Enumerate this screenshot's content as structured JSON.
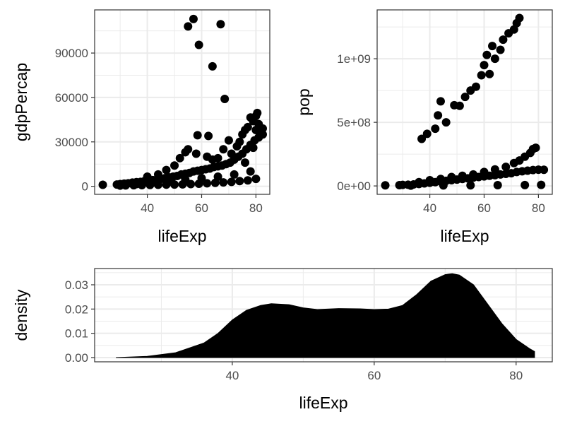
{
  "chart_data": [
    {
      "type": "scatter",
      "xlabel": "lifeExp",
      "ylabel": "gdpPercap",
      "xlim": [
        20.6,
        85.1
      ],
      "ylim": [
        -5430,
        119150
      ],
      "xticks": [
        40,
        60,
        80
      ],
      "xtick_labels": [
        "40",
        "60",
        "80"
      ],
      "yticks": [
        0,
        30000,
        60000,
        90000
      ],
      "ytick_labels": [
        "0",
        "30000",
        "60000",
        "90000"
      ],
      "grid": true,
      "series": [
        {
          "points": [
            [
              23.6,
              1000
            ],
            [
              28.8,
              1200
            ],
            [
              30,
              1500
            ],
            [
              31.5,
              1800
            ],
            [
              33,
              2000
            ],
            [
              34.5,
              2500
            ],
            [
              36,
              2800
            ],
            [
              37.5,
              3000
            ],
            [
              39,
              3500
            ],
            [
              40.5,
              4000
            ],
            [
              42,
              4200
            ],
            [
              43.5,
              4500
            ],
            [
              45,
              5000
            ],
            [
              46.5,
              5500
            ],
            [
              48,
              6000
            ],
            [
              49.5,
              6500
            ],
            [
              51,
              7000
            ],
            [
              52.5,
              8000
            ],
            [
              54,
              8500
            ],
            [
              55.5,
              9000
            ],
            [
              57,
              10000
            ],
            [
              58.5,
              10500
            ],
            [
              60,
              11000
            ],
            [
              61.5,
              11500
            ],
            [
              63,
              12000
            ],
            [
              64.5,
              13000
            ],
            [
              66,
              13500
            ],
            [
              67.5,
              14000
            ],
            [
              69,
              15000
            ],
            [
              70.5,
              16000
            ],
            [
              72,
              18000
            ],
            [
              73.5,
              20000
            ],
            [
              75,
              22000
            ],
            [
              76.5,
              25000
            ],
            [
              78,
              28000
            ],
            [
              79.5,
              31000
            ],
            [
              81,
              33000
            ],
            [
              82.5,
              35000
            ],
            [
              30,
              500
            ],
            [
              32,
              600
            ],
            [
              35,
              700
            ],
            [
              38,
              800
            ],
            [
              41,
              900
            ],
            [
              44,
              1000
            ],
            [
              47,
              1100
            ],
            [
              50,
              1200
            ],
            [
              53,
              1300
            ],
            [
              56,
              1500
            ],
            [
              59,
              1700
            ],
            [
              62,
              2000
            ],
            [
              65,
              2300
            ],
            [
              68,
              2600
            ],
            [
              71,
              3000
            ],
            [
              74,
              3500
            ],
            [
              77,
              4000
            ],
            [
              80,
              5000
            ],
            [
              36,
              1500
            ],
            [
              42,
              2500
            ],
            [
              48,
              3500
            ],
            [
              54,
              4500
            ],
            [
              60,
              5500
            ],
            [
              66,
              6500
            ],
            [
              72,
              8000
            ],
            [
              78,
              10000
            ],
            [
              40,
              6500
            ],
            [
              44,
              8000
            ],
            [
              47,
              11000
            ],
            [
              50,
              14000
            ],
            [
              52,
              19000
            ],
            [
              54,
              23000
            ],
            [
              55,
              25000
            ],
            [
              58,
              22000
            ],
            [
              62,
              20000
            ],
            [
              64,
              18000
            ],
            [
              66,
              19000
            ],
            [
              68,
              25000
            ],
            [
              70,
              31000
            ],
            [
              71,
              22000
            ],
            [
              73,
              27000
            ],
            [
              74,
              30000
            ],
            [
              75,
              35000
            ],
            [
              76,
              38000
            ],
            [
              77,
              40000
            ],
            [
              78,
              46500
            ],
            [
              79,
              44000
            ],
            [
              80,
              47500
            ],
            [
              80.5,
              49500
            ],
            [
              81,
              42000
            ],
            [
              82,
              36000
            ],
            [
              82.5,
              39000
            ],
            [
              80,
              38000
            ],
            [
              79,
              26000
            ],
            [
              76,
              16000
            ],
            [
              55,
              108000
            ],
            [
              57,
              113000
            ],
            [
              59,
              95500
            ],
            [
              64,
              81000
            ],
            [
              67,
              109500
            ],
            [
              68.5,
              59000
            ],
            [
              58.5,
              34500
            ],
            [
              62.5,
              34000
            ]
          ]
        }
      ]
    },
    {
      "type": "scatter",
      "xlabel": "lifeExp",
      "ylabel": "pop",
      "xlim": [
        20.6,
        85.1
      ],
      "ylim": [
        -66000000.0,
        1384000000.0
      ],
      "xticks": [
        40,
        60,
        80
      ],
      "xtick_labels": [
        "40",
        "60",
        "80"
      ],
      "yticks": [
        0,
        500000000,
        1000000000
      ],
      "ytick_labels": [
        "0e+00",
        "5e+08",
        "1e+09"
      ],
      "grid": true,
      "series": [
        {
          "points": [
            [
              23.6,
              5000000
            ],
            [
              28.8,
              6000000
            ],
            [
              30,
              8000000
            ],
            [
              32,
              10000000
            ],
            [
              34,
              12000000
            ],
            [
              36,
              15000000
            ],
            [
              38,
              20000000
            ],
            [
              40,
              25000000
            ],
            [
              42,
              30000000
            ],
            [
              44,
              35000000
            ],
            [
              46,
              40000000
            ],
            [
              48,
              45000000
            ],
            [
              50,
              50000000
            ],
            [
              52,
              55000000
            ],
            [
              54,
              60000000
            ],
            [
              56,
              65000000
            ],
            [
              58,
              70000000
            ],
            [
              60,
              75000000
            ],
            [
              62,
              80000000
            ],
            [
              64,
              85000000
            ],
            [
              66,
              90000000
            ],
            [
              68,
              95000000
            ],
            [
              70,
              100000000
            ],
            [
              72,
              110000000
            ],
            [
              74,
              115000000
            ],
            [
              76,
              120000000
            ],
            [
              78,
              125000000
            ],
            [
              80,
              128000000
            ],
            [
              82,
              127000000
            ],
            [
              36,
              30000000
            ],
            [
              40,
              45000000
            ],
            [
              44,
              55000000
            ],
            [
              48,
              70000000
            ],
            [
              52,
              80000000
            ],
            [
              56,
              90000000
            ],
            [
              60,
              110000000
            ],
            [
              64,
              130000000
            ],
            [
              68,
              150000000
            ],
            [
              71,
              180000000
            ],
            [
              73,
              200000000
            ],
            [
              75,
              230000000
            ],
            [
              77,
              260000000
            ],
            [
              78,
              290000000
            ],
            [
              79,
              300000000
            ],
            [
              33,
              3000000
            ],
            [
              45,
              4000000
            ],
            [
              55,
              5000000
            ],
            [
              65,
              6000000
            ],
            [
              75,
              7000000
            ],
            [
              81,
              8000000
            ],
            [
              37,
              370000000
            ],
            [
              39,
              410000000
            ],
            [
              42,
              450000000
            ],
            [
              43,
              555000000
            ],
            [
              44,
              665000000
            ],
            [
              46,
              500000000
            ],
            [
              49,
              635000000
            ],
            [
              51,
              630000000
            ],
            [
              53,
              700000000
            ],
            [
              55,
              750000000
            ],
            [
              57,
              780000000
            ],
            [
              59,
              870000000
            ],
            [
              60,
              950000000
            ],
            [
              61,
              1030000000
            ],
            [
              62,
              880000000
            ],
            [
              63,
              1100000000
            ],
            [
              64,
              1000000000
            ],
            [
              66,
              1070000000
            ],
            [
              67,
              1150000000
            ],
            [
              69,
              1200000000
            ],
            [
              71,
              1230000000
            ],
            [
              72,
              1280000000
            ],
            [
              73,
              1320000000
            ]
          ]
        }
      ]
    },
    {
      "type": "area",
      "xlabel": "lifeExp",
      "ylabel": "density",
      "xlim": [
        20.6,
        85.1
      ],
      "ylim": [
        -0.00175,
        0.0367
      ],
      "xticks": [
        40,
        60,
        80
      ],
      "xtick_labels": [
        "40",
        "60",
        "80"
      ],
      "yticks": [
        0,
        0.01,
        0.02,
        0.03
      ],
      "ytick_labels": [
        "0.00",
        "0.01",
        "0.02",
        "0.03"
      ],
      "grid": true,
      "series": [
        {
          "points": [
            [
              23.6,
              0.0
            ],
            [
              28,
              0.0005
            ],
            [
              32,
              0.002
            ],
            [
              36,
              0.006
            ],
            [
              38,
              0.01
            ],
            [
              40,
              0.0155
            ],
            [
              42,
              0.0195
            ],
            [
              44,
              0.0215
            ],
            [
              45.5,
              0.0222
            ],
            [
              48,
              0.0218
            ],
            [
              50,
              0.0205
            ],
            [
              52,
              0.0198
            ],
            [
              55,
              0.0202
            ],
            [
              58,
              0.0201
            ],
            [
              60,
              0.0198
            ],
            [
              62,
              0.02
            ],
            [
              64,
              0.0215
            ],
            [
              66,
              0.026
            ],
            [
              68,
              0.0315
            ],
            [
              70,
              0.0342
            ],
            [
              71,
              0.0346
            ],
            [
              72,
              0.034
            ],
            [
              74,
              0.03
            ],
            [
              76,
              0.022
            ],
            [
              78,
              0.014
            ],
            [
              80,
              0.0075
            ],
            [
              82,
              0.0035
            ],
            [
              82.6,
              0.0025
            ]
          ]
        }
      ]
    }
  ]
}
